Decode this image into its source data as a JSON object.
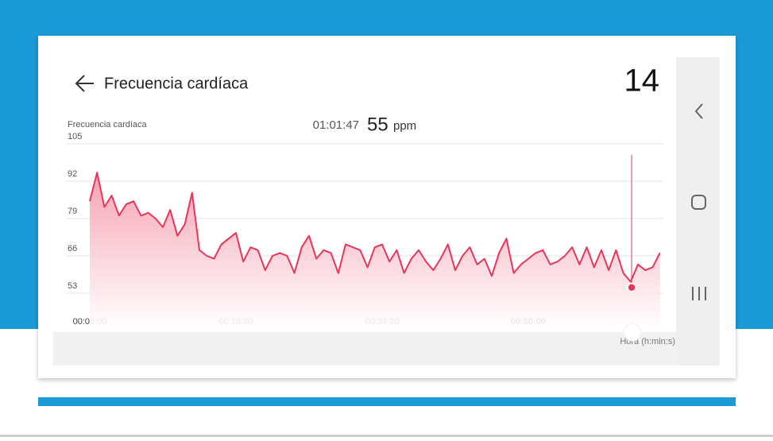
{
  "header": {
    "title": "Frecuencia cardíaca",
    "counter": "14"
  },
  "chart_data": {
    "type": "area",
    "y_label": "Frecuencia cardíaca",
    "x_label": "Hora (h:min:s)",
    "x": [
      0,
      50,
      100,
      150,
      200,
      250,
      300,
      350,
      400,
      450,
      500,
      550,
      600,
      650,
      700,
      750,
      800,
      850,
      900,
      950,
      1000,
      1050,
      1100,
      1150,
      1200,
      1250,
      1300,
      1350,
      1400,
      1450,
      1500,
      1550,
      1600,
      1650,
      1700,
      1750,
      1800,
      1850,
      1900,
      1950,
      2000,
      2050,
      2100,
      2150,
      2200,
      2250,
      2300,
      2350,
      2400,
      2450,
      2500,
      2550,
      2600,
      2650,
      2700,
      2750,
      2800,
      2850,
      2900,
      2950,
      3000,
      3050,
      3100,
      3150,
      3200,
      3250,
      3300,
      3350,
      3400,
      3450,
      3500,
      3550,
      3600,
      3650,
      3700,
      3750,
      3800,
      3850,
      3900
    ],
    "series": [
      {
        "name": "Frecuencia cardíaca",
        "color": "#e8365a",
        "values": [
          85,
          95,
          83,
          87,
          80,
          84,
          85,
          80,
          81,
          79,
          76,
          82,
          73,
          77,
          88,
          68,
          66,
          65,
          70,
          72,
          74,
          64,
          69,
          68,
          61,
          66,
          67,
          66,
          60,
          69,
          73,
          65,
          68,
          67,
          60,
          70,
          69,
          68,
          62,
          69,
          70,
          64,
          68,
          60,
          65,
          68,
          64,
          61,
          65,
          70,
          61,
          66,
          69,
          63,
          65,
          59,
          67,
          72,
          60,
          63,
          65,
          67,
          68,
          63,
          64,
          66,
          69,
          63,
          69,
          62,
          68,
          61,
          68,
          60,
          57,
          63,
          61,
          62,
          67
        ]
      }
    ],
    "xlim": [
      0,
      3900
    ],
    "ylim": [
      40,
      105
    ],
    "yticks": [
      53,
      66,
      79,
      92,
      105
    ],
    "xticks": [
      {
        "value": 0,
        "label": "00:00:00"
      },
      {
        "value": 1000,
        "label": "00:16:40"
      },
      {
        "value": 2000,
        "label": "00:33:20"
      },
      {
        "value": 3000,
        "label": "00:50:00"
      }
    ],
    "grid": true,
    "cursor": {
      "time_label": "01:01:47",
      "x": 3707,
      "value": 55,
      "unit": "ppm"
    }
  }
}
